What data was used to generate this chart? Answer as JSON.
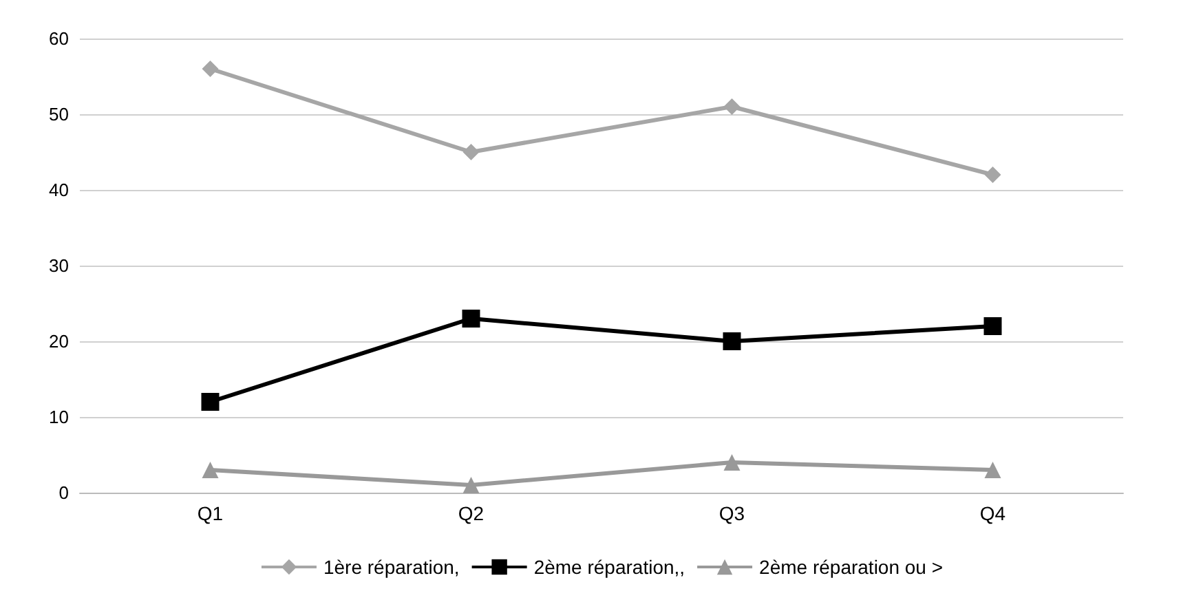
{
  "chart_data": {
    "type": "line",
    "categories": [
      "Q1",
      "Q2",
      "Q3",
      "Q4"
    ],
    "series": [
      {
        "name": "1ère réparation,",
        "color": "#a6a6a6",
        "marker": "diamond",
        "values": [
          56,
          45,
          51,
          42
        ]
      },
      {
        "name": "2ème réparation,,",
        "color": "#000000",
        "marker": "square",
        "values": [
          12,
          23,
          20,
          22
        ]
      },
      {
        "name": "2ème réparation ou >",
        "color": "#999999",
        "marker": "triangle",
        "values": [
          3,
          1,
          4,
          3
        ]
      }
    ],
    "ylim": [
      0,
      60
    ],
    "yticks": [
      0,
      10,
      20,
      30,
      40,
      50,
      60
    ],
    "grid": "y",
    "legend": "bottom"
  }
}
